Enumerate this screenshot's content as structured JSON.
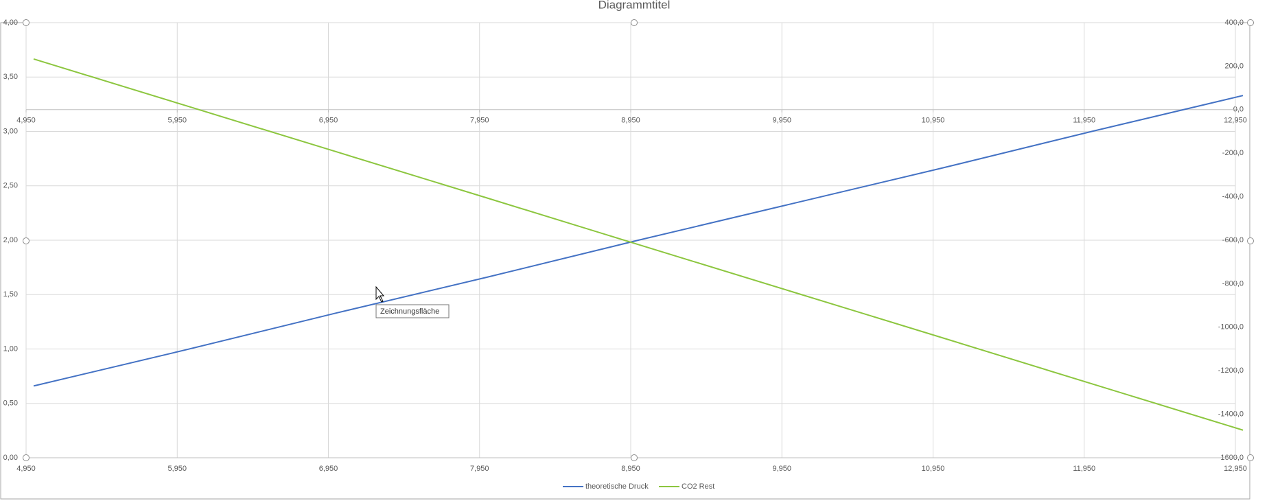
{
  "chart_data": {
    "type": "line",
    "title": "Diagrammtitel",
    "x": [
      5,
      6,
      7,
      8,
      9,
      10,
      11,
      12,
      13
    ],
    "series": [
      {
        "name": "theoretische Druck",
        "color": "#4472c4",
        "values": [
          0.66,
          0.99,
          1.33,
          1.66,
          2.0,
          2.33,
          2.66,
          3.0,
          3.33
        ]
      },
      {
        "name": "CO2 Rest",
        "color": "#8cc63f",
        "axis": "y2",
        "values": [
          233,
          20,
          -193,
          -406,
          -620,
          -833,
          -1046,
          -1260,
          -1473
        ]
      }
    ],
    "xlim": [
      4.95,
      12.95
    ],
    "xticks": [
      {
        "value": 4.95,
        "label": "4,950"
      },
      {
        "value": 5.95,
        "label": "5,950"
      },
      {
        "value": 6.95,
        "label": "6,950"
      },
      {
        "value": 7.95,
        "label": "7,950"
      },
      {
        "value": 8.95,
        "label": "8,950"
      },
      {
        "value": 9.95,
        "label": "9,950"
      },
      {
        "value": 10.95,
        "label": "10,950"
      },
      {
        "value": 11.95,
        "label": "11,950"
      },
      {
        "value": 12.95,
        "label": "12,950"
      }
    ],
    "x2ticks": [
      {
        "value": 4.95,
        "label": "4,950"
      },
      {
        "value": 5.95,
        "label": "5,950"
      },
      {
        "value": 6.95,
        "label": "6,950"
      },
      {
        "value": 7.95,
        "label": "7,950"
      },
      {
        "value": 8.95,
        "label": "8,950"
      },
      {
        "value": 9.95,
        "label": "9,950"
      },
      {
        "value": 10.95,
        "label": "10,950"
      },
      {
        "value": 11.95,
        "label": "11,950"
      },
      {
        "value": 12.95,
        "label": "12,950"
      }
    ],
    "ylim": [
      0,
      4
    ],
    "yticks": [
      {
        "value": 0,
        "label": "0,00"
      },
      {
        "value": 0.5,
        "label": "0,50"
      },
      {
        "value": 1,
        "label": "1,00"
      },
      {
        "value": 1.5,
        "label": "1,50"
      },
      {
        "value": 2,
        "label": "2,00"
      },
      {
        "value": 2.5,
        "label": "2,50"
      },
      {
        "value": 3,
        "label": "3,00"
      },
      {
        "value": 3.5,
        "label": "3,50"
      },
      {
        "value": 4,
        "label": "4,00"
      }
    ],
    "y2lim": [
      -1600,
      400
    ],
    "y2ticks": [
      {
        "value": 400,
        "label": "400,0"
      },
      {
        "value": 200,
        "label": "200,0"
      },
      {
        "value": 0,
        "label": "0,0"
      },
      {
        "value": -200,
        "label": "-200,0"
      },
      {
        "value": -400,
        "label": "-400,0"
      },
      {
        "value": -600,
        "label": "-600,0"
      },
      {
        "value": -800,
        "label": "-800,0"
      },
      {
        "value": -1000,
        "label": "-1000,0"
      },
      {
        "value": -1200,
        "label": "-1200,0"
      },
      {
        "value": -1400,
        "label": "-1400,0"
      },
      {
        "value": -1600,
        "label": "-1600,0"
      }
    ],
    "grid": true,
    "legend": "bottom",
    "annotations": [
      "Zeichnungsfläche"
    ]
  }
}
